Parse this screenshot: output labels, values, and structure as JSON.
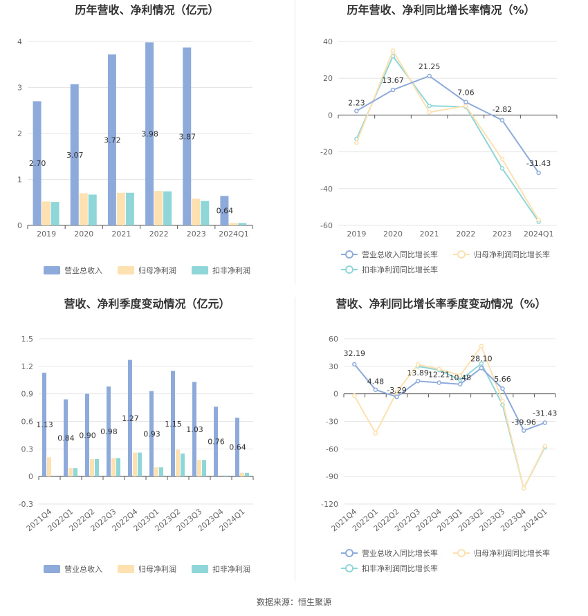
{
  "source": "数据来源：恒生聚源",
  "colors": {
    "revenue": "#8eaadb",
    "parent_profit": "#fde1b0",
    "deducted_profit": "#8fd6d8",
    "revenue_line": "#8eaadb",
    "parent_line": "#fde1b0",
    "deducted_line": "#8fd6d8",
    "grid": "#e6e6e6",
    "axis": "#555555"
  },
  "chart_data": [
    {
      "id": "annual_amount",
      "type": "bar",
      "title": "历年营收、净利情况（亿元）",
      "categories": [
        "2019",
        "2020",
        "2021",
        "2022",
        "2023",
        "2024Q1"
      ],
      "ylim": [
        0,
        4
      ],
      "yticks": [
        0,
        1,
        2,
        3,
        4
      ],
      "series": [
        {
          "name": "营业总收入",
          "values": [
            2.7,
            3.07,
            3.72,
            3.98,
            3.87,
            0.64
          ],
          "labels": [
            "2.70",
            "3.07",
            "3.72",
            "3.98",
            "3.87",
            "0.64"
          ]
        },
        {
          "name": "归母净利润",
          "values": [
            0.52,
            0.7,
            0.71,
            0.75,
            0.58,
            0.05
          ]
        },
        {
          "name": "扣非净利润",
          "values": [
            0.51,
            0.67,
            0.71,
            0.74,
            0.53,
            0.05
          ]
        }
      ],
      "legend": "bottom"
    },
    {
      "id": "annual_growth",
      "type": "line",
      "title": "历年营收、净利同比增长率情况（%）",
      "categories": [
        "2019",
        "2020",
        "2021",
        "2022",
        "2023",
        "2024Q1"
      ],
      "ylim": [
        -60,
        40
      ],
      "yticks": [
        -60,
        -40,
        -20,
        0,
        20,
        40
      ],
      "series": [
        {
          "name": "营业总收入同比增长率",
          "values": [
            2.23,
            13.67,
            21.25,
            7.06,
            -2.82,
            -31.43
          ],
          "labels": [
            "2.23",
            "13.67",
            "21.25",
            "7.06",
            "-2.82",
            "-31.43"
          ]
        },
        {
          "name": "归母净利润同比增长率",
          "values": [
            -15,
            35,
            1.5,
            5,
            -24,
            -57
          ]
        },
        {
          "name": "扣非净利润同比增长率",
          "values": [
            -13,
            32,
            5,
            4.5,
            -29,
            -58
          ]
        }
      ],
      "legend": "bottom"
    },
    {
      "id": "quarterly_amount",
      "type": "bar",
      "title": "营收、净利季度变动情况（亿元）",
      "categories": [
        "2021Q4",
        "2022Q1",
        "2022Q2",
        "2022Q3",
        "2022Q4",
        "2023Q1",
        "2023Q2",
        "2023Q3",
        "2023Q4",
        "2024Q1"
      ],
      "ylim": [
        -0.3,
        1.5
      ],
      "yticks": [
        -0.3,
        0,
        0.3,
        0.6,
        0.9,
        1.2,
        1.5
      ],
      "ytick_labels": [
        "-0.3",
        "0",
        "0.3",
        "0.6",
        "0.9",
        "1.2",
        "1.5"
      ],
      "series": [
        {
          "name": "营业总收入",
          "values": [
            1.13,
            0.84,
            0.9,
            0.98,
            1.27,
            0.93,
            1.15,
            1.03,
            0.76,
            0.64
          ],
          "labels": [
            "1.13",
            "0.84",
            "0.90",
            "0.98",
            "1.27",
            "0.93",
            "1.15",
            "1.03",
            "0.76",
            "0.64"
          ]
        },
        {
          "name": "归母净利润",
          "values": [
            0.21,
            0.09,
            0.19,
            0.2,
            0.26,
            0.1,
            0.29,
            0.18,
            0.0,
            0.04
          ]
        },
        {
          "name": "扣非净利润",
          "values": [
            0.0,
            0.09,
            0.19,
            0.2,
            0.26,
            0.1,
            0.25,
            0.18,
            0.01,
            0.04
          ]
        }
      ],
      "legend": "bottom"
    },
    {
      "id": "quarterly_growth",
      "type": "line",
      "title": "营收、净利同比增长率季度变动情况（%）",
      "categories": [
        "2021Q4",
        "2022Q1",
        "2022Q2",
        "2022Q3",
        "2022Q4",
        "2023Q1",
        "2023Q2",
        "2023Q3",
        "2023Q4",
        "2024Q1"
      ],
      "ylim": [
        -120,
        60
      ],
      "yticks": [
        -120,
        -90,
        -60,
        -30,
        0,
        30,
        60
      ],
      "series": [
        {
          "name": "营业总收入同比增长率",
          "values": [
            32.19,
            4.48,
            -3.29,
            13.89,
            12.21,
            10.48,
            28.1,
            5.66,
            -39.96,
            -31.43
          ],
          "labels": [
            "32.19",
            "4.48",
            "-3.29",
            "13.89",
            "12.21",
            "10.48",
            "28.10",
            "5.66",
            "-39.96",
            "-31.43"
          ]
        },
        {
          "name": "归母净利润同比增长率",
          "values": [
            -2,
            -43,
            2,
            32,
            27,
            20,
            52,
            -8,
            -103,
            -57
          ]
        },
        {
          "name": "扣非净利润同比增长率",
          "values": [
            null,
            null,
            null,
            30,
            26,
            15,
            33,
            -12,
            -103,
            -58
          ]
        }
      ],
      "legend": "bottom"
    }
  ]
}
